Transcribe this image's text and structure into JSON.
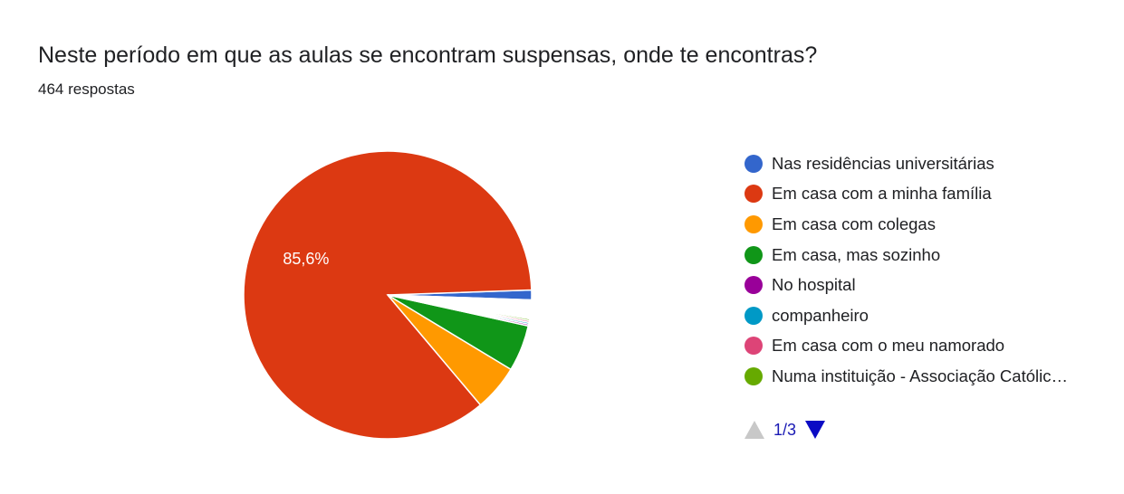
{
  "header": {
    "title": "Neste período em que as aulas se encontram suspensas, onde te encontras?",
    "subtitle": "464 respostas"
  },
  "chart_data": {
    "type": "pie",
    "total_responses": 464,
    "slices": [
      {
        "label": "Nas residências universitárias",
        "value": 1.1,
        "color": "#3366cc"
      },
      {
        "label": "Em casa com a minha família",
        "value": 85.6,
        "color": "#dc3912",
        "data_label": "85,6%"
      },
      {
        "label": "Em casa com colegas",
        "value": 5.2,
        "color": "#ff9900"
      },
      {
        "label": "Em casa, mas sozinho",
        "value": 5.2,
        "color": "#109618"
      },
      {
        "label": "No hospital",
        "value": 0.2,
        "color": "#990099"
      },
      {
        "label": "companheiro",
        "value": 0.2,
        "color": "#0099c6"
      },
      {
        "label": "Em casa com o meu namorado",
        "value": 0.2,
        "color": "#dd4477"
      },
      {
        "label": "Numa instituição - Associação Católic…",
        "value": 0.2,
        "color": "#66aa00"
      },
      {
        "value": 2.1,
        "color": "#ffffff"
      }
    ],
    "legend_position": "right"
  },
  "legend": {
    "pager": {
      "current": "1/3"
    }
  }
}
